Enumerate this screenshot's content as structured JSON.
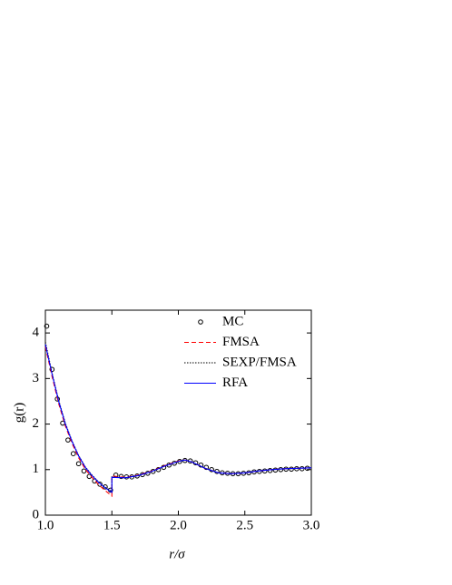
{
  "chart_data": {
    "type": "line",
    "x_label": "r/σ",
    "y_label": "g(r)",
    "xlim": [
      1,
      3
    ],
    "ylim": [
      0,
      4.5
    ],
    "xticks": [
      {
        "value": 1,
        "label": "1.0"
      },
      {
        "value": 1.5,
        "label": "1.5"
      },
      {
        "value": 2,
        "label": "2.0"
      },
      {
        "value": 2.5,
        "label": "2.5"
      },
      {
        "value": 3,
        "label": "3.0"
      }
    ],
    "yticks": [
      0,
      1,
      2,
      3,
      4
    ],
    "legend": "top-right",
    "series": [
      {
        "name": "MC",
        "color": "#000000",
        "style": "markers",
        "x": [
          1.01,
          1.05,
          1.09,
          1.13,
          1.17,
          1.21,
          1.25,
          1.29,
          1.33,
          1.37,
          1.41,
          1.45,
          1.49,
          1.53,
          1.57,
          1.61,
          1.65,
          1.69,
          1.73,
          1.77,
          1.81,
          1.85,
          1.89,
          1.93,
          1.97,
          2.01,
          2.05,
          2.09,
          2.13,
          2.17,
          2.21,
          2.25,
          2.29,
          2.33,
          2.37,
          2.41,
          2.45,
          2.49,
          2.53,
          2.57,
          2.61,
          2.65,
          2.69,
          2.73,
          2.77,
          2.81,
          2.85,
          2.89,
          2.93,
          2.97
        ],
        "values": [
          4.15,
          3.2,
          2.55,
          2.02,
          1.65,
          1.35,
          1.13,
          0.97,
          0.85,
          0.75,
          0.68,
          0.62,
          0.55,
          0.88,
          0.85,
          0.84,
          0.84,
          0.86,
          0.89,
          0.92,
          0.96,
          1.0,
          1.05,
          1.1,
          1.14,
          1.18,
          1.2,
          1.19,
          1.15,
          1.1,
          1.05,
          1.0,
          0.96,
          0.93,
          0.92,
          0.91,
          0.91,
          0.92,
          0.93,
          0.95,
          0.96,
          0.97,
          0.98,
          0.99,
          1.0,
          1.01,
          1.01,
          1.02,
          1.02,
          1.03
        ]
      },
      {
        "name": "FMSA",
        "color": "#ff0000",
        "style": "dashed",
        "x": [
          1.0,
          1.05,
          1.1,
          1.15,
          1.2,
          1.25,
          1.3,
          1.35,
          1.4,
          1.45,
          1.5,
          1.5,
          1.6,
          1.7,
          1.8,
          1.9,
          2.0,
          2.05,
          2.1,
          2.2,
          2.3,
          2.4,
          2.5,
          2.6,
          2.7,
          2.8,
          2.9,
          3.0
        ],
        "values": [
          3.7,
          3.05,
          2.45,
          1.96,
          1.58,
          1.26,
          1.01,
          0.83,
          0.67,
          0.54,
          0.42,
          0.86,
          0.83,
          0.88,
          0.97,
          1.09,
          1.19,
          1.21,
          1.17,
          1.03,
          0.93,
          0.91,
          0.93,
          0.97,
          1.0,
          1.02,
          1.03,
          1.04
        ]
      },
      {
        "name": "SEXP/FMSA",
        "color": "#000000",
        "style": "dotted",
        "x": [
          1.0,
          1.05,
          1.1,
          1.15,
          1.2,
          1.25,
          1.3,
          1.35,
          1.4,
          1.45,
          1.5,
          1.5,
          1.6,
          1.7,
          1.8,
          1.9,
          2.0,
          2.05,
          2.1,
          2.2,
          2.3,
          2.4,
          2.5,
          2.6,
          2.7,
          2.8,
          2.9,
          3.0
        ],
        "values": [
          3.8,
          3.12,
          2.52,
          2.02,
          1.63,
          1.31,
          1.06,
          0.88,
          0.73,
          0.61,
          0.52,
          0.84,
          0.82,
          0.87,
          0.96,
          1.08,
          1.18,
          1.21,
          1.17,
          1.03,
          0.93,
          0.91,
          0.93,
          0.97,
          1.0,
          1.02,
          1.03,
          1.04
        ]
      },
      {
        "name": "RFA",
        "color": "#0000ff",
        "style": "solid",
        "x": [
          1.0,
          1.05,
          1.1,
          1.15,
          1.2,
          1.25,
          1.3,
          1.35,
          1.4,
          1.45,
          1.5,
          1.5,
          1.6,
          1.7,
          1.8,
          1.9,
          2.0,
          2.05,
          2.1,
          2.2,
          2.3,
          2.4,
          2.5,
          2.6,
          2.7,
          2.8,
          2.9,
          3.0
        ],
        "values": [
          3.75,
          3.1,
          2.5,
          2.0,
          1.62,
          1.3,
          1.05,
          0.87,
          0.72,
          0.6,
          0.5,
          0.83,
          0.82,
          0.87,
          0.96,
          1.08,
          1.18,
          1.21,
          1.17,
          1.03,
          0.93,
          0.91,
          0.93,
          0.97,
          1.0,
          1.02,
          1.03,
          1.04
        ]
      }
    ]
  }
}
